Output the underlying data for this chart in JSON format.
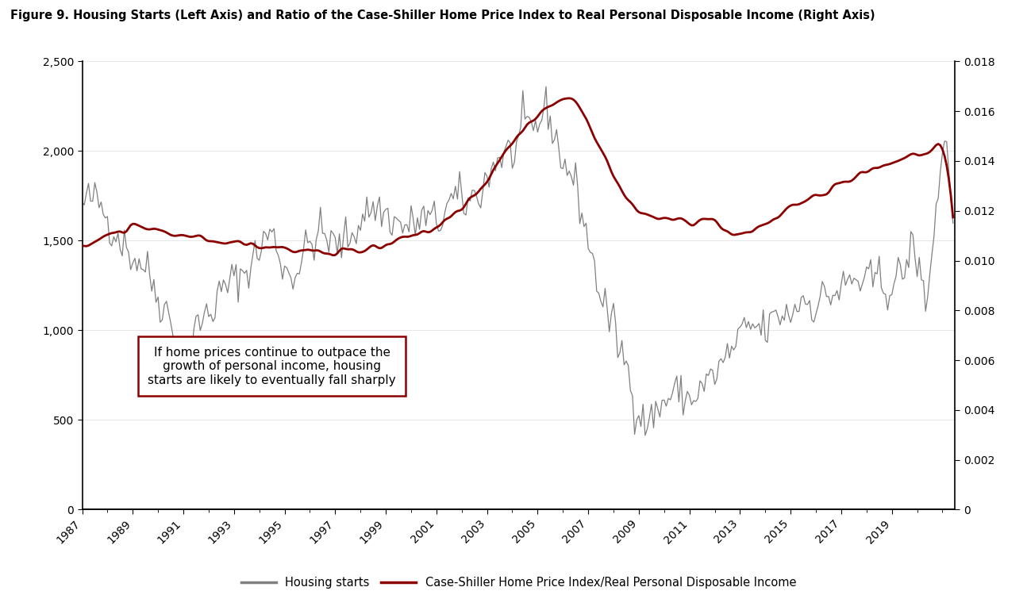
{
  "title": "Figure 9. Housing Starts (Left Axis) and Ratio of the Case-Shiller Home Price Index to Real Personal Disposable Income (Right Axis)",
  "title_fontsize": 10.5,
  "housing_color": "#808080",
  "ratio_color": "#8B0000",
  "left_ylim": [
    0,
    2500
  ],
  "right_ylim": [
    0,
    0.018
  ],
  "left_yticks": [
    0,
    500,
    1000,
    1500,
    2000,
    2500
  ],
  "right_yticks": [
    0,
    0.002,
    0.004,
    0.006,
    0.008,
    0.01,
    0.012,
    0.014,
    0.016,
    0.018
  ],
  "xlabel_years": [
    "1987",
    "1989",
    "1991",
    "1993",
    "1995",
    "1997",
    "1999",
    "2001",
    "2003",
    "2005",
    "2007",
    "2009",
    "2011",
    "2013",
    "2015",
    "2017",
    "2019"
  ],
  "annotation_text": "If home prices continue to outpace the\ngrowth of personal income, housing\nstarts are likely to eventually fall sharply",
  "legend_housing": "Housing starts",
  "legend_ratio": "Case-Shiller Home Price Index/Real Personal Disposable Income",
  "background_color": "#ffffff"
}
